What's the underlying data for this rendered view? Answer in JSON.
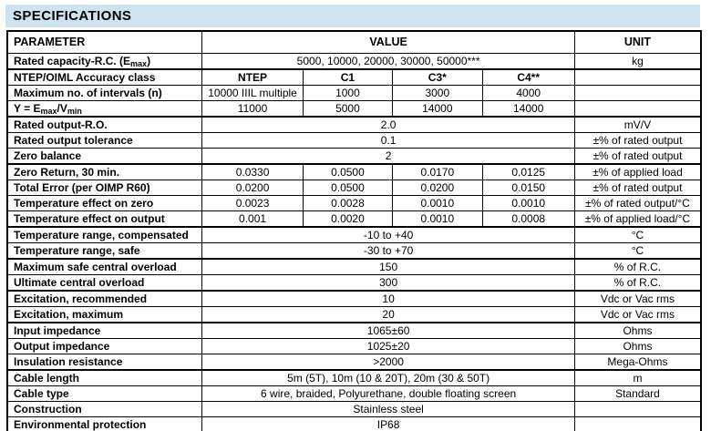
{
  "title": "SPECIFICATIONS",
  "colors": {
    "title_bar_bg": "#cee2f0",
    "border": "#000000",
    "text": "#000000",
    "page_bg": "#ffffff"
  },
  "table": {
    "headers": {
      "parameter": "PARAMETER",
      "value": "VALUE",
      "unit": "UNIT"
    },
    "rows": [
      {
        "param": "Rated capacity-R.C. (E~max~)",
        "values": [
          "5000, 10000, 20000, 30000, 50000***"
        ],
        "unit": "kg"
      },
      {
        "param": "NTEP/OIML Accuracy class",
        "values": [
          "NTEP",
          "C1",
          "C3*",
          "C4**"
        ],
        "unit": "",
        "bold_values": true,
        "sep": true
      },
      {
        "param": "Maximum no. of intervals (n)",
        "values": [
          "10000 IIIL multiple",
          "1000",
          "3000",
          "4000"
        ],
        "unit": ""
      },
      {
        "param": "Y = E~max~/V~min~",
        "values": [
          "11000",
          "5000",
          "14000",
          "14000"
        ],
        "unit": ""
      },
      {
        "param": "Rated output-R.O.",
        "values": [
          "2.0"
        ],
        "unit": "mV/V",
        "sep": true
      },
      {
        "param": "Rated output tolerance",
        "values": [
          "0.1"
        ],
        "unit": "±% of rated output"
      },
      {
        "param": "Zero balance",
        "values": [
          "2"
        ],
        "unit": "±% of rated output"
      },
      {
        "param": "Zero Return, 30 min.",
        "values": [
          "0.0330",
          "0.0500",
          "0.0170",
          "0.0125"
        ],
        "unit": "±% of applied load",
        "sep": true
      },
      {
        "param": "Total Error (per OIMP R60)",
        "values": [
          "0.0200",
          "0.0500",
          "0.0200",
          "0.0150"
        ],
        "unit": "±% of rated output"
      },
      {
        "param": "Temperature effect on zero",
        "values": [
          "0.0023",
          "0.0028",
          "0.0010",
          "0.0010"
        ],
        "unit": "±% of rated output/°C"
      },
      {
        "param": "Temperature effect on output",
        "values": [
          "0.001",
          "0.0020",
          "0.0010",
          "0.0008"
        ],
        "unit": "±% of applied load/°C"
      },
      {
        "param": "Temperature range, compensated",
        "values": [
          "-10 to +40"
        ],
        "unit": "°C",
        "sep": true
      },
      {
        "param": "Temperature range, safe",
        "values": [
          "-30 to +70"
        ],
        "unit": "°C"
      },
      {
        "param": "Maximum safe central overload",
        "values": [
          "150"
        ],
        "unit": "% of R.C.",
        "sep": true
      },
      {
        "param": "Ultimate central overload",
        "values": [
          "300"
        ],
        "unit": "% of R.C."
      },
      {
        "param": "Excitation, recommended",
        "values": [
          "10"
        ],
        "unit": "Vdc or Vac rms",
        "sep": true
      },
      {
        "param": "Excitation, maximum",
        "values": [
          "20"
        ],
        "unit": "Vdc or Vac rms"
      },
      {
        "param": "Input impedance",
        "values": [
          "1065±60"
        ],
        "unit": "Ohms",
        "sep": true
      },
      {
        "param": "Output impedance",
        "values": [
          "1025±20"
        ],
        "unit": "Ohms"
      },
      {
        "param": "Insulation resistance",
        "values": [
          ">2000"
        ],
        "unit": "Mega-Ohms"
      },
      {
        "param": "Cable length",
        "values": [
          "5m (5T), 10m (10 & 20T), 20m (30 & 50T)"
        ],
        "unit": "m",
        "sep": true
      },
      {
        "param": "Cable type",
        "values": [
          "6 wire, braided, Polyurethane, double floating screen"
        ],
        "unit": "Standard"
      },
      {
        "param": "Construction",
        "values": [
          "Stainless steel"
        ],
        "unit": ""
      },
      {
        "param": "Environmental protection",
        "values": [
          "IP68"
        ],
        "unit": ""
      }
    ]
  }
}
